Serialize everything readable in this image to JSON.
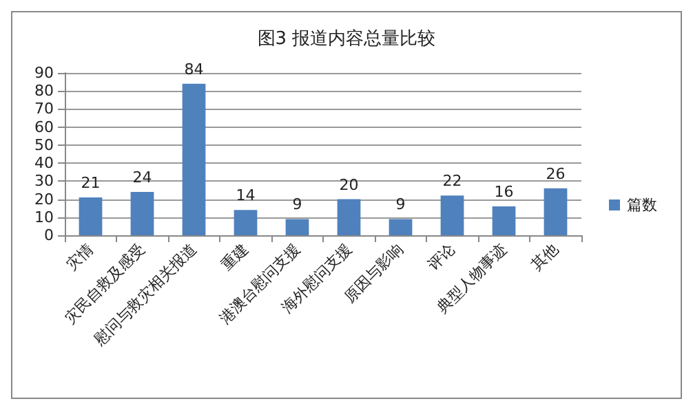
{
  "chart_data": {
    "type": "bar",
    "title": "图3 报道内容总量比较",
    "categories": [
      "灾情",
      "灾民自救及感受",
      "慰问与救灾相关报道",
      "重建",
      "港澳台慰问支援",
      "海外慰问支援",
      "原因与影响",
      "评论",
      "典型人物事迹",
      "其他"
    ],
    "series": [
      {
        "name": "篇数",
        "color": "#4f81bd",
        "values": [
          21,
          24,
          84,
          14,
          9,
          20,
          9,
          22,
          16,
          26
        ]
      }
    ],
    "ylim": [
      0,
      90
    ],
    "yticks": [
      0,
      10,
      20,
      30,
      40,
      50,
      60,
      70,
      80,
      90
    ],
    "grid": "y",
    "legend": "right",
    "data_labels": true
  }
}
